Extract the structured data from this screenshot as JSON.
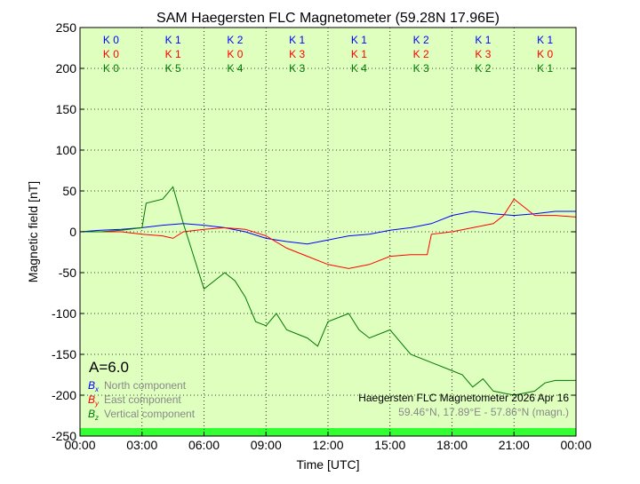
{
  "chart_data": {
    "type": "line",
    "title": "SAM Haegersten FLC Magnetometer (59.28N 17.96E)",
    "xlabel": "Time [UTC]",
    "ylabel": "Magnetic field [nT]",
    "xlim": [
      0,
      24
    ],
    "ylim": [
      -250,
      250
    ],
    "grid": true,
    "background_color": "#dfffbf",
    "band_color": "#33ff33",
    "xticks": [
      "00:00",
      "03:00",
      "06:00",
      "09:00",
      "12:00",
      "15:00",
      "18:00",
      "21:00",
      "00:00"
    ],
    "yticks": [
      250,
      200,
      150,
      100,
      50,
      0,
      -50,
      -100,
      -150,
      -200,
      -250
    ],
    "k_indices": {
      "x": [
        "K 0",
        "K 1",
        "K 2",
        "K 1",
        "K 1",
        "K 2",
        "K 1",
        "K 1"
      ],
      "y": [
        "K 0",
        "K 1",
        "K 0",
        "K 3",
        "K 1",
        "K 2",
        "K 3",
        "K 0"
      ],
      "z": [
        "K 0",
        "K 5",
        "K 4",
        "K 3",
        "K 4",
        "K 3",
        "K 2",
        "K 1"
      ]
    },
    "activity": "A=6.0",
    "legend_placement": "bottom-left",
    "series": [
      {
        "name": "North component",
        "symbol": "x",
        "color": "#0000ff",
        "x": [
          0,
          1,
          2,
          3,
          4,
          5,
          6,
          7,
          8,
          9,
          10,
          11,
          12,
          13,
          14,
          15,
          16,
          17,
          18,
          19,
          20,
          21,
          22,
          23,
          24
        ],
        "y": [
          0,
          2,
          3,
          5,
          8,
          10,
          8,
          5,
          0,
          -8,
          -12,
          -15,
          -10,
          -5,
          -3,
          2,
          5,
          10,
          20,
          25,
          22,
          20,
          22,
          25,
          25
        ]
      },
      {
        "name": "East component",
        "symbol": "y",
        "color": "#ff0000",
        "x": [
          0,
          1,
          2,
          3,
          4,
          4.5,
          5,
          6,
          7,
          8,
          9,
          10,
          11,
          12,
          13,
          14,
          15,
          16,
          16.8,
          17,
          18,
          19,
          20,
          20.5,
          21,
          21.5,
          22,
          23,
          24
        ],
        "y": [
          0,
          0,
          0,
          -3,
          -5,
          -8,
          0,
          3,
          5,
          3,
          -5,
          -20,
          -30,
          -40,
          -45,
          -40,
          -30,
          -28,
          -28,
          -3,
          0,
          5,
          10,
          20,
          40,
          30,
          20,
          20,
          18
        ]
      },
      {
        "name": "Vertical component",
        "symbol": "z",
        "color": "#007700",
        "x": [
          0,
          1,
          2,
          3,
          3.2,
          4,
          4.5,
          5,
          5.5,
          6,
          7,
          7.5,
          8,
          8.5,
          9,
          9.5,
          10,
          10.5,
          11,
          11.5,
          12,
          13,
          13.5,
          14,
          15,
          16,
          17,
          18,
          18.5,
          19,
          19.5,
          20,
          21,
          22,
          22.5,
          23,
          24
        ],
        "y": [
          0,
          0,
          2,
          5,
          35,
          40,
          55,
          10,
          -30,
          -70,
          -50,
          -60,
          -80,
          -110,
          -115,
          -100,
          -120,
          -125,
          -130,
          -140,
          -110,
          -100,
          -120,
          -130,
          -120,
          -150,
          -160,
          -170,
          -175,
          -190,
          -180,
          -195,
          -200,
          -195,
          -185,
          -182,
          -182
        ]
      }
    ]
  },
  "footer": {
    "station": "Haegersten FLC Magnetometer 2026 Apr 16",
    "coords": "59.46°N, 17.89°E - 57.86°N (magn.)"
  }
}
